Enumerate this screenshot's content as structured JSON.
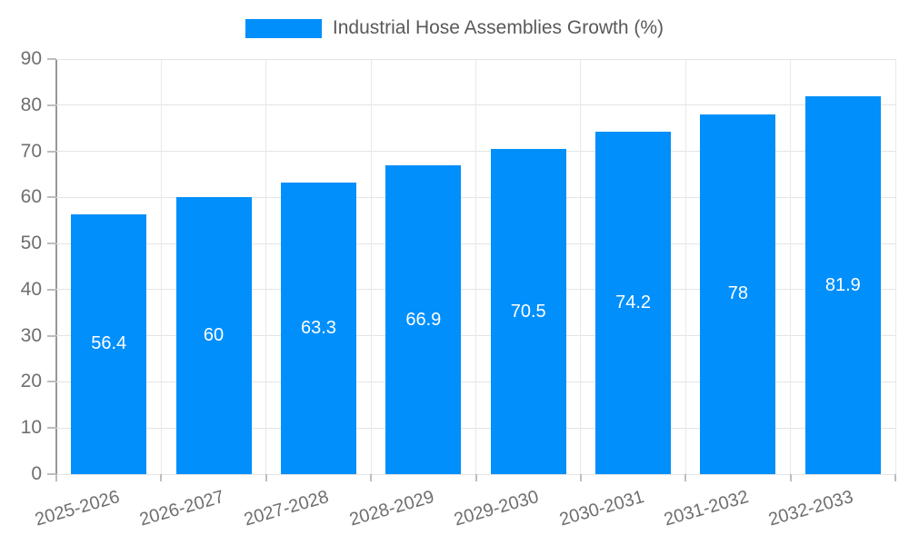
{
  "legend": {
    "label": "Industrial Hose Assemblies Growth (%)",
    "swatch_color": "#008ffb"
  },
  "chart_data": {
    "type": "bar",
    "title": "Industrial Hose Assemblies Growth (%)",
    "categories": [
      "2025-2026",
      "2026-2027",
      "2027-2028",
      "2028-2029",
      "2029-2030",
      "2030-2031",
      "2031-2032",
      "2032-2033"
    ],
    "values": [
      56.4,
      60,
      63.3,
      66.9,
      70.5,
      74.2,
      78,
      81.9
    ],
    "xlabel": "",
    "ylabel": "",
    "ylim": [
      0,
      90
    ],
    "ytick_step": 10,
    "ytick_labels": [
      "0",
      "10",
      "20",
      "30",
      "40",
      "50",
      "60",
      "70",
      "80",
      "90"
    ],
    "bar_color": "#008ffb",
    "value_label_color": "#ffffff",
    "grid": true,
    "legend_position": "top"
  }
}
